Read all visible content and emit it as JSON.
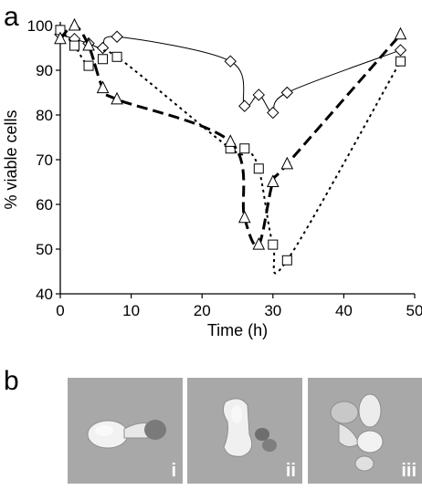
{
  "panel_a_label": "a",
  "panel_b_label": "b",
  "chart_data": {
    "type": "line",
    "xlabel": "Time (h)",
    "ylabel": "% viable cells",
    "xlim": [
      0,
      50
    ],
    "ylim": [
      40,
      100
    ],
    "x_ticks": [
      0,
      10,
      20,
      30,
      40,
      50
    ],
    "y_ticks": [
      40,
      50,
      60,
      70,
      80,
      90,
      100
    ],
    "grid": false,
    "legend": "none",
    "series": [
      {
        "marker": "diamond",
        "line_style": "solid",
        "points": [
          [
            0,
            98
          ],
          [
            2,
            97
          ],
          [
            4,
            96
          ],
          [
            6,
            95
          ],
          [
            8,
            97.5
          ],
          [
            24,
            92
          ],
          [
            26,
            82
          ],
          [
            28,
            84.5
          ],
          [
            30,
            80.5
          ],
          [
            32,
            85
          ],
          [
            48,
            94.5
          ]
        ]
      },
      {
        "marker": "square",
        "line_style": "dotted",
        "points": [
          [
            0,
            99
          ],
          [
            2,
            95.5
          ],
          [
            4,
            91
          ],
          [
            6,
            92.5
          ],
          [
            8,
            93
          ],
          [
            24,
            72.5
          ],
          [
            26,
            72.5
          ],
          [
            28,
            68
          ],
          [
            30,
            51
          ],
          [
            32,
            47.5
          ],
          [
            48,
            92
          ]
        ]
      },
      {
        "marker": "triangle",
        "line_style": "dashed",
        "points": [
          [
            0,
            97
          ],
          [
            2,
            100
          ],
          [
            4,
            95.5
          ],
          [
            6,
            86
          ],
          [
            8,
            83.5
          ],
          [
            24,
            74
          ],
          [
            26,
            57
          ],
          [
            28,
            51
          ],
          [
            30,
            65
          ],
          [
            32,
            69
          ],
          [
            48,
            98
          ]
        ]
      }
    ]
  },
  "micrographs": [
    {
      "label": "i"
    },
    {
      "label": "ii"
    },
    {
      "label": "iii"
    }
  ]
}
